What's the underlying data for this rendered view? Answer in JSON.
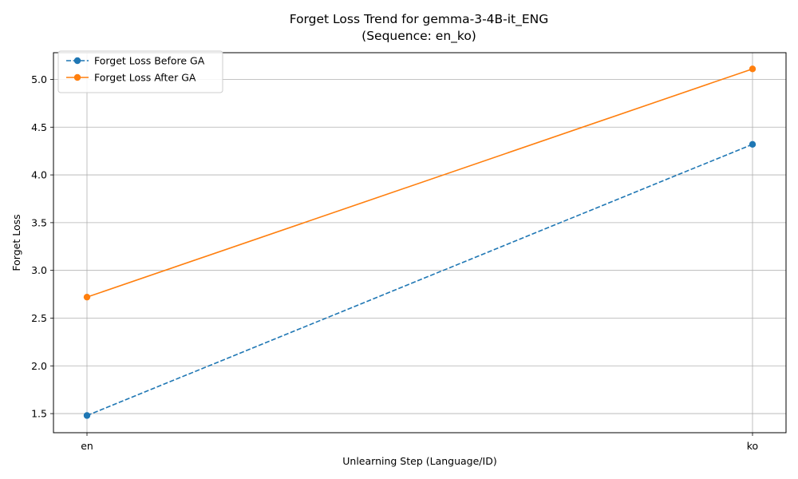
{
  "chart_data": {
    "type": "line",
    "title": "Forget Loss Trend for gemma-3-4B-it_ENG",
    "subtitle": "(Sequence: en_ko)",
    "xlabel": "Unlearning Step (Language/ID)",
    "ylabel": "Forget Loss",
    "categories": [
      "en",
      "ko"
    ],
    "ylim": [
      1.3,
      5.28
    ],
    "yticks": [
      1.5,
      2.0,
      2.5,
      3.0,
      3.5,
      4.0,
      4.5,
      5.0
    ],
    "ytick_labels": [
      "1.5",
      "2.0",
      "2.5",
      "3.0",
      "3.5",
      "4.0",
      "4.5",
      "5.0"
    ],
    "grid": true,
    "legend_position": "top-left",
    "series": [
      {
        "name": "Forget Loss Before GA",
        "values": [
          1.48,
          4.32
        ],
        "color": "#1f77b4",
        "linestyle": "dashed",
        "marker": "circle"
      },
      {
        "name": "Forget Loss After GA",
        "values": [
          2.72,
          5.11
        ],
        "color": "#ff7f0e",
        "linestyle": "solid",
        "marker": "circle"
      }
    ]
  }
}
